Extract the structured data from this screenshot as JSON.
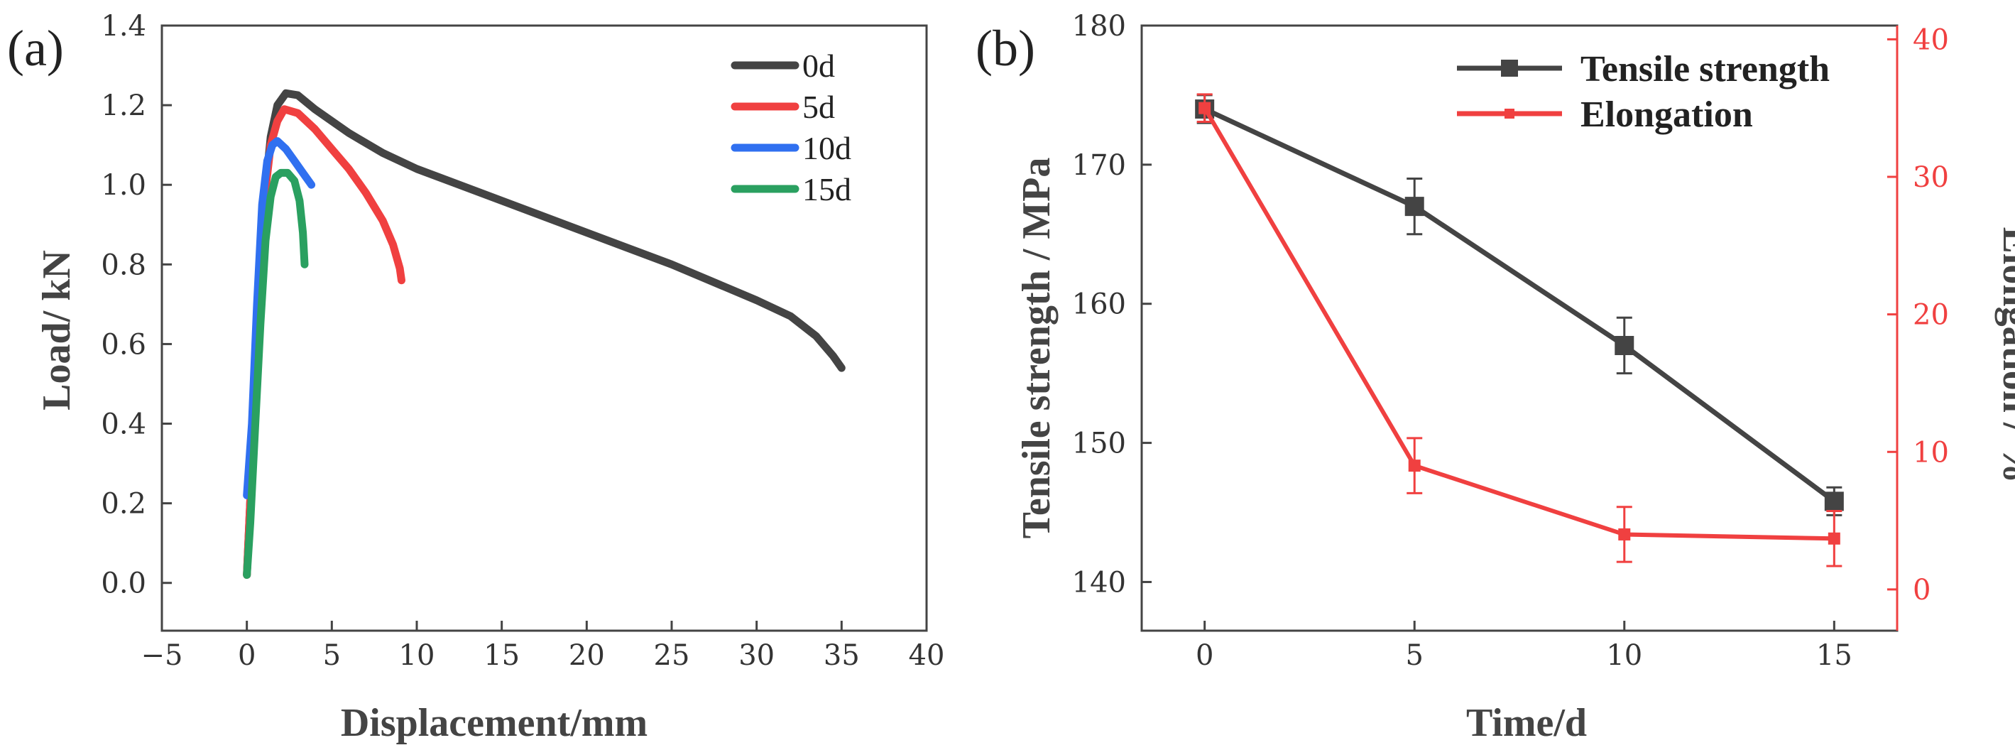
{
  "chart_data": [
    {
      "panel": "(a)",
      "type": "line",
      "xlabel": "Displacement/mm",
      "ylabel": "Load/ kN",
      "xlim": [
        -5,
        40
      ],
      "ylim": [
        -0.12,
        1.4
      ],
      "xticks": [
        -5,
        0,
        5,
        10,
        15,
        20,
        25,
        30,
        35,
        40
      ],
      "xtick_labels": [
        "−5",
        "0",
        "5",
        "10",
        "15",
        "20",
        "25",
        "30",
        "35",
        "40"
      ],
      "yticks": [
        0.0,
        0.2,
        0.4,
        0.6,
        0.8,
        1.0,
        1.2,
        1.4
      ],
      "ytick_labels": [
        "0.0",
        "0.2",
        "0.4",
        "0.6",
        "0.8",
        "1.0",
        "1.2",
        "1.4"
      ],
      "legend_position": "top-right",
      "series": [
        {
          "name": "0d",
          "color": "#444444",
          "x": [
            0,
            0.3,
            0.6,
            1.0,
            1.4,
            1.8,
            2.3,
            3,
            4,
            6,
            8,
            10,
            15,
            20,
            25,
            30,
            32,
            33.5,
            34.5,
            35
          ],
          "y": [
            0.02,
            0.3,
            0.6,
            0.95,
            1.12,
            1.2,
            1.23,
            1.225,
            1.19,
            1.13,
            1.08,
            1.04,
            0.96,
            0.88,
            0.8,
            0.71,
            0.67,
            0.62,
            0.57,
            0.54
          ]
        },
        {
          "name": "5d",
          "color": "#f04040",
          "x": [
            0,
            0.3,
            0.6,
            1.0,
            1.4,
            1.8,
            2.2,
            3,
            4,
            5,
            6,
            7,
            8,
            8.6,
            9.0,
            9.1
          ],
          "y": [
            0.02,
            0.3,
            0.6,
            0.95,
            1.1,
            1.16,
            1.19,
            1.18,
            1.14,
            1.09,
            1.04,
            0.98,
            0.91,
            0.85,
            0.79,
            0.76
          ]
        },
        {
          "name": "10d",
          "color": "#3070f0",
          "x": [
            0,
            0.3,
            0.6,
            0.9,
            1.2,
            1.5,
            1.8,
            2.3,
            2.8,
            3.3,
            3.8
          ],
          "y": [
            0.22,
            0.4,
            0.7,
            0.95,
            1.06,
            1.1,
            1.11,
            1.09,
            1.06,
            1.03,
            1.0
          ]
        },
        {
          "name": "15d",
          "color": "#2aa060",
          "x": [
            0,
            0.2,
            0.5,
            0.8,
            1.1,
            1.4,
            1.7,
            2.0,
            2.4,
            2.8,
            3.1,
            3.3,
            3.4
          ],
          "y": [
            0.02,
            0.15,
            0.4,
            0.65,
            0.86,
            0.97,
            1.02,
            1.03,
            1.03,
            1.01,
            0.96,
            0.88,
            0.8
          ]
        }
      ]
    },
    {
      "panel": "(b)",
      "type": "line",
      "xlabel": "Time/d",
      "ylabel_left": "Tensile strength / MPa",
      "ylabel_right": "Elongation / %",
      "x": [
        0,
        5,
        10,
        15
      ],
      "xlim": [
        -1.5,
        16.5
      ],
      "ylim_left": [
        136.5,
        180
      ],
      "ylim_right": [
        -3,
        41
      ],
      "xticks": [
        0,
        5,
        10,
        15
      ],
      "xtick_labels": [
        "0",
        "5",
        "10",
        "15"
      ],
      "yticks_left": [
        140,
        150,
        160,
        170,
        180
      ],
      "ytick_labels_left": [
        "140",
        "150",
        "160",
        "170",
        "180"
      ],
      "yticks_right": [
        0,
        10,
        20,
        30,
        40
      ],
      "ytick_labels_right": [
        "0",
        "10",
        "20",
        "30",
        "40"
      ],
      "legend_position": "top-right",
      "series": [
        {
          "name": "Tensile strength",
          "axis": "left",
          "color": "#444444",
          "marker": "square",
          "values": [
            174,
            167,
            157,
            145.8
          ],
          "errors": [
            1.0,
            2.0,
            2.0,
            1.0
          ]
        },
        {
          "name": "Elongation",
          "axis": "right",
          "color": "#f04040",
          "marker": "square-small",
          "values": [
            35,
            9,
            4,
            3.7
          ],
          "errors": [
            1.0,
            2.0,
            2.0,
            2.0
          ]
        }
      ]
    }
  ]
}
